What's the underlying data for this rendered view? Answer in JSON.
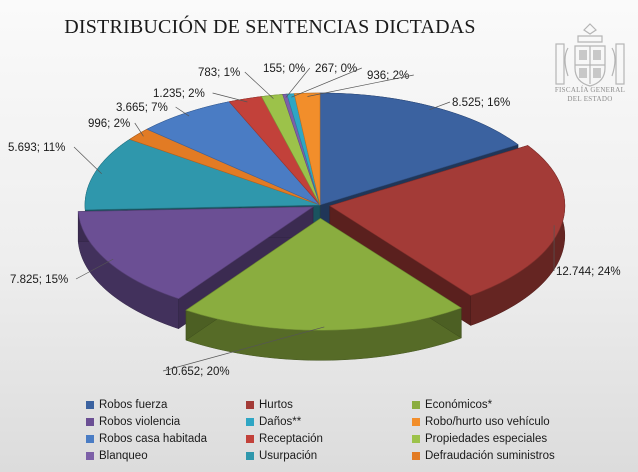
{
  "chart_data": {
    "type": "pie",
    "title": "DISTRIBUCIÓN DE SENTENCIAS DICTADAS",
    "slices": [
      {
        "name": "Robos fuerza",
        "value": 8525,
        "label": "8.525; 16%",
        "color": "#3b62a0"
      },
      {
        "name": "Hurtos",
        "value": 12744,
        "label": "12.744; 24%",
        "color": "#a33b37"
      },
      {
        "name": "Económicos*",
        "value": 10652,
        "label": "10.652; 20%",
        "color": "#8aad3f"
      },
      {
        "name": "Robos violencia",
        "value": 7825,
        "label": "7.825; 15%",
        "color": "#6b4f94"
      },
      {
        "name": "Usurpación",
        "value": 5693,
        "label": "5.693; 11%",
        "color": "#2f97ac"
      },
      {
        "name": "Defraudación suministros",
        "value": 996,
        "label": "996; 2%",
        "color": "#e27b24"
      },
      {
        "name": "Robos casa habitada",
        "value": 3665,
        "label": "3.665; 7%",
        "color": "#4a7cc4"
      },
      {
        "name": "Receptación",
        "value": 1235,
        "label": "1.235; 2%",
        "color": "#c2413a"
      },
      {
        "name": "Propiedades especiales",
        "value": 783,
        "label": "783; 1%",
        "color": "#9cc24a"
      },
      {
        "name": "Blanqueo",
        "value": 155,
        "label": "155; 0%",
        "color": "#7d60a8"
      },
      {
        "name": "Daños**",
        "value": 267,
        "label": "267; 0%",
        "color": "#2fa6c4"
      },
      {
        "name": "Robo/hurto uso vehículo",
        "value": 936,
        "label": "936; 2%",
        "color": "#f28e2b"
      }
    ],
    "legend_position": "bottom",
    "legend_order": [
      "Robos fuerza",
      "Hurtos",
      "Económicos*",
      "Robos violencia",
      "Daños**",
      "Robo/hurto uso vehículo",
      "Robos casa habitada",
      "Receptación",
      "Propiedades especiales",
      "Blanqueo",
      "Usurpación",
      "Defraudación suministros"
    ]
  },
  "logo": {
    "text_line1": "FISCALÍA GENERAL",
    "text_line2": "DEL ESTADO"
  }
}
